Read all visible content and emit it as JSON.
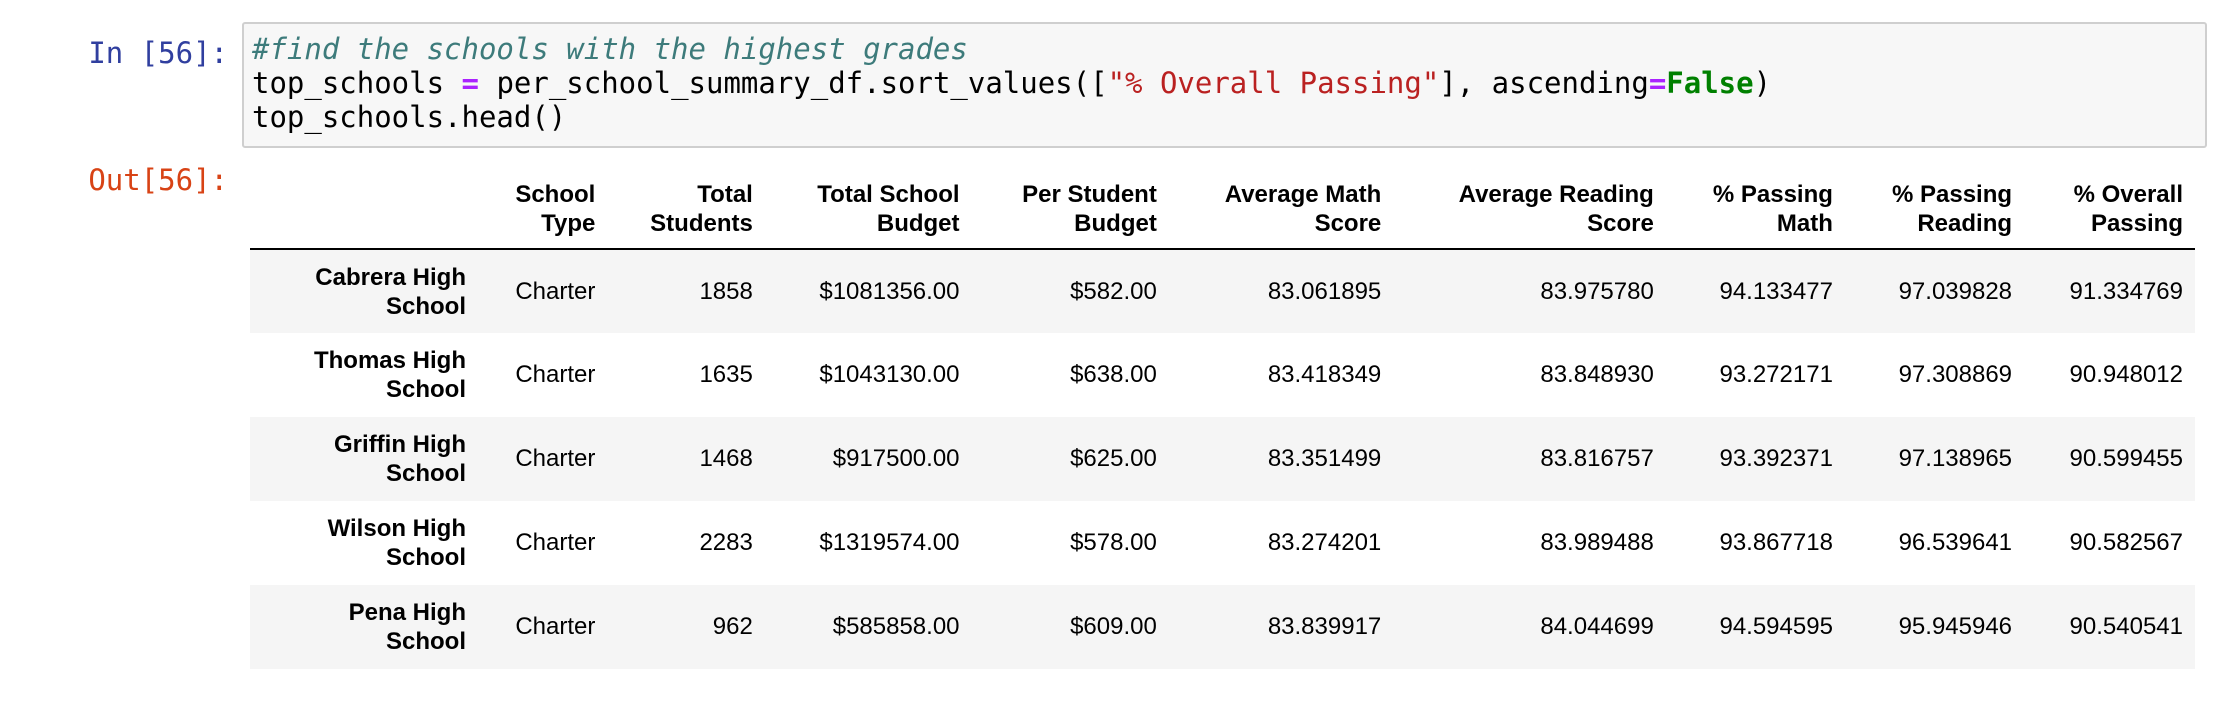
{
  "cell": {
    "in_prompt": "In [56]:",
    "out_prompt": "Out[56]:",
    "code": {
      "comment": "#find the schools with the highest grades",
      "line2": {
        "var": "top_schools",
        "op": "=",
        "call": "per_school_summary_df.sort_values([",
        "string": "\"% Overall Passing\"",
        "mid": "], ascending",
        "eq": "=",
        "kw": "False",
        "close": ")"
      },
      "line3": "top_schools.head()"
    }
  },
  "table": {
    "columns": [
      {
        "line1": "School",
        "line2": "Type"
      },
      {
        "line1": "Total",
        "line2": "Students"
      },
      {
        "line1": "Total School",
        "line2": "Budget"
      },
      {
        "line1": "Per Student",
        "line2": "Budget"
      },
      {
        "line1": "Average Math",
        "line2": "Score"
      },
      {
        "line1": "Average Reading",
        "line2": "Score"
      },
      {
        "line1": "% Passing",
        "line2": "Math"
      },
      {
        "line1": "% Passing",
        "line2": "Reading"
      },
      {
        "line1": "% Overall",
        "line2": "Passing"
      }
    ],
    "rows": [
      {
        "index1": "Cabrera High",
        "index2": "School",
        "cells": [
          "Charter",
          "1858",
          "$1081356.00",
          "$582.00",
          "83.061895",
          "83.975780",
          "94.133477",
          "97.039828",
          "91.334769"
        ]
      },
      {
        "index1": "Thomas High",
        "index2": "School",
        "cells": [
          "Charter",
          "1635",
          "$1043130.00",
          "$638.00",
          "83.418349",
          "83.848930",
          "93.272171",
          "97.308869",
          "90.948012"
        ]
      },
      {
        "index1": "Griffin High",
        "index2": "School",
        "cells": [
          "Charter",
          "1468",
          "$917500.00",
          "$625.00",
          "83.351499",
          "83.816757",
          "93.392371",
          "97.138965",
          "90.599455"
        ]
      },
      {
        "index1": "Wilson High",
        "index2": "School",
        "cells": [
          "Charter",
          "2283",
          "$1319574.00",
          "$578.00",
          "83.274201",
          "83.989488",
          "93.867718",
          "96.539641",
          "90.582567"
        ]
      },
      {
        "index1": "Pena High",
        "index2": "School",
        "cells": [
          "Charter",
          "962",
          "$585858.00",
          "$609.00",
          "83.839917",
          "84.044699",
          "94.594595",
          "95.945946",
          "90.540541"
        ]
      }
    ]
  }
}
